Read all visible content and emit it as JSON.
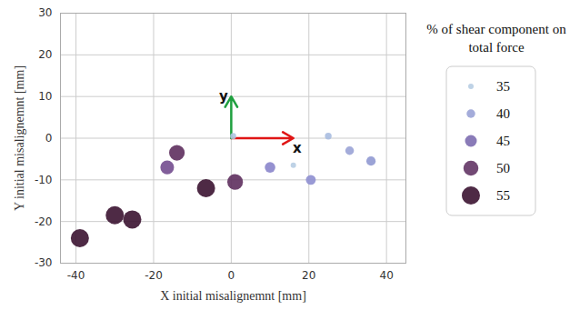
{
  "chart_data": {
    "type": "scatter",
    "x_label": "X initial misalignemnt [mm]",
    "y_label": "Y initial misalignemnt [mm]",
    "x": [
      -39,
      -30,
      -25.5,
      -6.5,
      1,
      -14,
      -16.5,
      10,
      20.5,
      16,
      25,
      30.5,
      36,
      0.5
    ],
    "y": [
      -24,
      -18.5,
      -19.5,
      -12,
      -10.5,
      -3.5,
      -7,
      -7,
      -10,
      -6.5,
      0.5,
      -3,
      -5.5,
      0.5
    ],
    "size": [
      55,
      55,
      55,
      55,
      51,
      51,
      48,
      43,
      42,
      35,
      37,
      40,
      41,
      36
    ],
    "colors": [
      "#3b1331",
      "#3b1331",
      "#3b1331",
      "#3b1331",
      "#5e2f5e",
      "#5e2f5e",
      "#734c8f",
      "#8a85cb",
      "#8e8fd0",
      "#b7cde3",
      "#a8bde0",
      "#9aa3d6",
      "#9099d2",
      "#b0c6e2"
    ],
    "xlim": [
      -44,
      45
    ],
    "xticks": [
      -40,
      -20,
      0,
      20,
      40
    ],
    "ylim": [
      -30,
      30
    ],
    "yticks": [
      -30,
      -20,
      -10,
      0,
      10,
      20,
      30
    ],
    "grid": true,
    "legend": "right",
    "size_legend": {
      "title": "% of shear component on total force",
      "values": [
        35,
        40,
        45,
        50,
        55
      ],
      "colors": [
        "#b7cde3",
        "#9aa3d6",
        "#7d6db0",
        "#633565",
        "#3b1331"
      ]
    },
    "annotations": [
      {
        "text": "x",
        "x": 17,
        "y": -2.5,
        "color": "#e01515",
        "arrow_to": [
          16,
          0
        ]
      },
      {
        "text": "y",
        "x": -2,
        "y": 10,
        "color": "#20a040",
        "arrow_to": [
          0,
          10
        ]
      }
    ]
  }
}
